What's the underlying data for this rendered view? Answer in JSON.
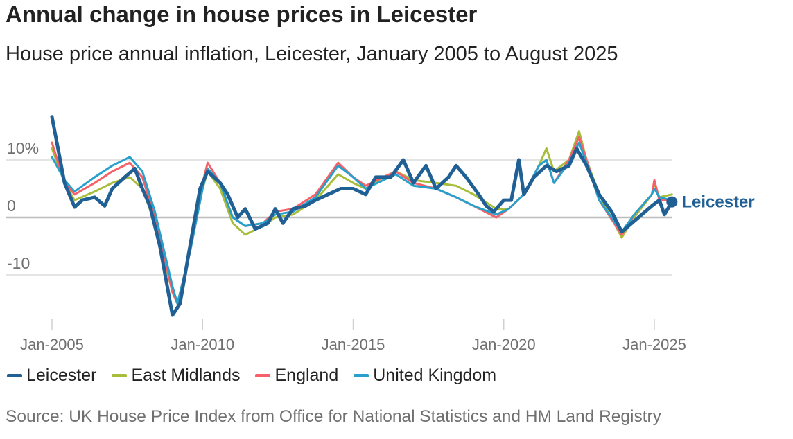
{
  "title": "Annual change in house prices in Leicester",
  "subtitle": "House price annual inflation, Leicester, January 2005 to August 2025",
  "source": "Source: UK House Price Index from Office for National Statistics and HM Land Registry",
  "chart_data": {
    "type": "line",
    "title": "Annual change in house prices in Leicester",
    "subtitle": "House price annual inflation, Leicester, January 2005 to August 2025",
    "ylim": [
      -18,
      18
    ],
    "xlim": [
      "2005-01",
      "2025-08"
    ],
    "y_ticks": [
      {
        "value": 10,
        "label": "10%"
      },
      {
        "value": 0,
        "label": "0"
      },
      {
        "value": -10,
        "label": "-10"
      }
    ],
    "x_ticks": [
      {
        "value": "2005-01",
        "label": "Jan-2005"
      },
      {
        "value": "2010-01",
        "label": "Jan-2010"
      },
      {
        "value": "2015-01",
        "label": "Jan-2015"
      },
      {
        "value": "2020-01",
        "label": "Jan-2020"
      },
      {
        "value": "2025-01",
        "label": "Jan-2025"
      }
    ],
    "grid": "horizontal",
    "legend": "bottom",
    "end_label": "Leicester",
    "series": [
      {
        "name": "East Midlands",
        "color": "#a8bd3a",
        "points": [
          [
            "2005-01",
            12
          ],
          [
            "2005-06",
            6
          ],
          [
            "2005-10",
            3
          ],
          [
            "2006-06",
            4.5
          ],
          [
            "2007-01",
            6
          ],
          [
            "2007-08",
            7
          ],
          [
            "2008-01",
            5
          ],
          [
            "2008-06",
            -1
          ],
          [
            "2009-01",
            -13
          ],
          [
            "2009-03",
            -15
          ],
          [
            "2009-08",
            -6
          ],
          [
            "2010-01",
            5
          ],
          [
            "2010-03",
            8
          ],
          [
            "2010-08",
            5
          ],
          [
            "2011-01",
            -1
          ],
          [
            "2011-06",
            -3
          ],
          [
            "2012-01",
            -1.5
          ],
          [
            "2012-06",
            0
          ],
          [
            "2013-01",
            0.5
          ],
          [
            "2013-10",
            3
          ],
          [
            "2014-07",
            7.5
          ],
          [
            "2015-01",
            6
          ],
          [
            "2015-06",
            5
          ],
          [
            "2016-01",
            7
          ],
          [
            "2016-06",
            8
          ],
          [
            "2017-01",
            6.5
          ],
          [
            "2017-10",
            6
          ],
          [
            "2018-06",
            5.5
          ],
          [
            "2019-01",
            4
          ],
          [
            "2019-10",
            1.5
          ],
          [
            "2020-03",
            1.5
          ],
          [
            "2020-09",
            4
          ],
          [
            "2021-03",
            9
          ],
          [
            "2021-06",
            12
          ],
          [
            "2021-09",
            8
          ],
          [
            "2022-03",
            10
          ],
          [
            "2022-07",
            15
          ],
          [
            "2022-10",
            10
          ],
          [
            "2023-03",
            4
          ],
          [
            "2023-12",
            -3.5
          ],
          [
            "2024-05",
            0
          ],
          [
            "2024-12",
            4
          ],
          [
            "2025-01",
            6
          ],
          [
            "2025-03",
            3.5
          ],
          [
            "2025-08",
            4
          ]
        ]
      },
      {
        "name": "England",
        "color": "#f66068",
        "points": [
          [
            "2005-01",
            13
          ],
          [
            "2005-06",
            6
          ],
          [
            "2005-10",
            4
          ],
          [
            "2006-06",
            6
          ],
          [
            "2007-01",
            8
          ],
          [
            "2007-08",
            9.5
          ],
          [
            "2008-01",
            7
          ],
          [
            "2008-06",
            0
          ],
          [
            "2009-01",
            -13
          ],
          [
            "2009-03",
            -15
          ],
          [
            "2009-08",
            -6
          ],
          [
            "2010-01",
            6
          ],
          [
            "2010-03",
            9.5
          ],
          [
            "2010-08",
            6
          ],
          [
            "2011-01",
            0
          ],
          [
            "2011-06",
            -1.5
          ],
          [
            "2012-01",
            -1
          ],
          [
            "2012-06",
            1
          ],
          [
            "2013-01",
            1.5
          ],
          [
            "2013-10",
            4
          ],
          [
            "2014-07",
            9.5
          ],
          [
            "2015-01",
            7
          ],
          [
            "2015-06",
            5.5
          ],
          [
            "2016-01",
            7
          ],
          [
            "2016-06",
            8
          ],
          [
            "2017-01",
            6
          ],
          [
            "2017-10",
            5
          ],
          [
            "2018-06",
            3.5
          ],
          [
            "2019-01",
            2
          ],
          [
            "2019-10",
            0
          ],
          [
            "2020-03",
            1.5
          ],
          [
            "2020-09",
            4
          ],
          [
            "2021-03",
            9
          ],
          [
            "2021-06",
            10
          ],
          [
            "2021-09",
            6
          ],
          [
            "2022-03",
            10
          ],
          [
            "2022-07",
            14
          ],
          [
            "2022-10",
            10
          ],
          [
            "2023-03",
            3
          ],
          [
            "2023-12",
            -3
          ],
          [
            "2024-05",
            0.5
          ],
          [
            "2024-12",
            4
          ],
          [
            "2025-01",
            6.5
          ],
          [
            "2025-03",
            3
          ],
          [
            "2025-08",
            3
          ]
        ]
      },
      {
        "name": "United Kingdom",
        "color": "#27a0cc",
        "points": [
          [
            "2005-01",
            10.5
          ],
          [
            "2005-06",
            6.5
          ],
          [
            "2005-10",
            4.5
          ],
          [
            "2006-06",
            7
          ],
          [
            "2007-01",
            9
          ],
          [
            "2007-08",
            10.5
          ],
          [
            "2008-01",
            8
          ],
          [
            "2008-06",
            1
          ],
          [
            "2009-01",
            -12
          ],
          [
            "2009-03",
            -15
          ],
          [
            "2009-08",
            -6
          ],
          [
            "2010-01",
            5
          ],
          [
            "2010-03",
            8.5
          ],
          [
            "2010-08",
            6
          ],
          [
            "2011-01",
            0
          ],
          [
            "2011-06",
            -1.5
          ],
          [
            "2012-01",
            -1
          ],
          [
            "2012-06",
            0.5
          ],
          [
            "2013-01",
            1
          ],
          [
            "2013-10",
            3.5
          ],
          [
            "2014-07",
            9
          ],
          [
            "2015-01",
            7
          ],
          [
            "2015-06",
            5
          ],
          [
            "2016-01",
            6.5
          ],
          [
            "2016-06",
            7.5
          ],
          [
            "2017-01",
            5.5
          ],
          [
            "2017-10",
            5
          ],
          [
            "2018-06",
            3.5
          ],
          [
            "2019-01",
            2
          ],
          [
            "2019-10",
            0.5
          ],
          [
            "2020-03",
            1.5
          ],
          [
            "2020-09",
            4
          ],
          [
            "2021-03",
            9
          ],
          [
            "2021-06",
            10
          ],
          [
            "2021-09",
            6
          ],
          [
            "2022-03",
            9.5
          ],
          [
            "2022-07",
            13
          ],
          [
            "2022-10",
            9.5
          ],
          [
            "2023-03",
            3
          ],
          [
            "2023-12",
            -2.5
          ],
          [
            "2024-05",
            0.5
          ],
          [
            "2024-12",
            4
          ],
          [
            "2025-01",
            5
          ],
          [
            "2025-03",
            3.5
          ],
          [
            "2025-08",
            3
          ]
        ]
      },
      {
        "name": "Leicester",
        "color": "#206095",
        "points": [
          [
            "2005-01",
            17.5
          ],
          [
            "2005-06",
            6
          ],
          [
            "2005-10",
            1.8
          ],
          [
            "2006-01",
            3
          ],
          [
            "2006-06",
            3.5
          ],
          [
            "2006-10",
            2
          ],
          [
            "2007-01",
            5
          ],
          [
            "2007-06",
            7
          ],
          [
            "2007-10",
            8.5
          ],
          [
            "2008-01",
            5
          ],
          [
            "2008-04",
            2
          ],
          [
            "2008-08",
            -5
          ],
          [
            "2009-01",
            -17
          ],
          [
            "2009-04",
            -15
          ],
          [
            "2009-08",
            -5
          ],
          [
            "2009-12",
            5
          ],
          [
            "2010-03",
            8
          ],
          [
            "2010-08",
            6
          ],
          [
            "2010-11",
            4
          ],
          [
            "2011-03",
            0
          ],
          [
            "2011-06",
            1.5
          ],
          [
            "2011-10",
            -2
          ],
          [
            "2012-03",
            -1
          ],
          [
            "2012-06",
            1.5
          ],
          [
            "2012-09",
            -1
          ],
          [
            "2013-01",
            1.5
          ],
          [
            "2013-06",
            2
          ],
          [
            "2013-10",
            3
          ],
          [
            "2014-03",
            4
          ],
          [
            "2014-08",
            5
          ],
          [
            "2015-01",
            5
          ],
          [
            "2015-06",
            4
          ],
          [
            "2015-10",
            7
          ],
          [
            "2016-04",
            7
          ],
          [
            "2016-09",
            10
          ],
          [
            "2017-01",
            6
          ],
          [
            "2017-06",
            9
          ],
          [
            "2017-10",
            5
          ],
          [
            "2018-03",
            7
          ],
          [
            "2018-06",
            9
          ],
          [
            "2018-10",
            7
          ],
          [
            "2019-03",
            4
          ],
          [
            "2019-06",
            2
          ],
          [
            "2019-09",
            1
          ],
          [
            "2020-01",
            3
          ],
          [
            "2020-04",
            3
          ],
          [
            "2020-07",
            10
          ],
          [
            "2020-09",
            4
          ],
          [
            "2021-01",
            7
          ],
          [
            "2021-06",
            9
          ],
          [
            "2021-10",
            8
          ],
          [
            "2022-03",
            9
          ],
          [
            "2022-06",
            12
          ],
          [
            "2022-10",
            9
          ],
          [
            "2023-03",
            4
          ],
          [
            "2023-08",
            1
          ],
          [
            "2023-12",
            -2.5
          ],
          [
            "2024-04",
            -1
          ],
          [
            "2024-08",
            0.5
          ],
          [
            "2024-12",
            2
          ],
          [
            "2025-03",
            3
          ],
          [
            "2025-05",
            0.5
          ],
          [
            "2025-08",
            2.7
          ]
        ]
      }
    ]
  },
  "legend": [
    {
      "label": "Leicester",
      "color": "#206095"
    },
    {
      "label": "East Midlands",
      "color": "#a8bd3a"
    },
    {
      "label": "England",
      "color": "#f66068"
    },
    {
      "label": "United Kingdom",
      "color": "#27a0cc"
    }
  ]
}
